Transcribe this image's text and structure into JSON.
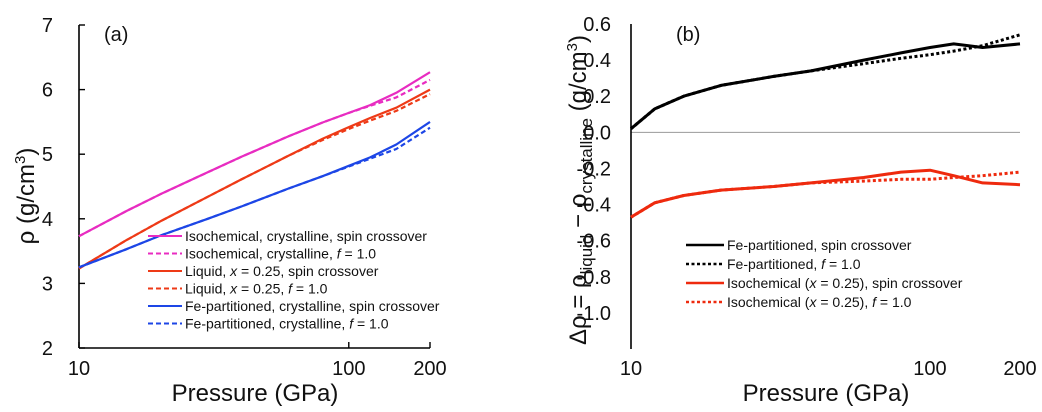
{
  "chart_data": [
    {
      "type": "line",
      "panel_label": "(a)",
      "xlabel": "Pressure (GPa)",
      "ylabel": "ρ (g/cm³)",
      "x_scale": "log",
      "xlim": [
        10,
        200
      ],
      "ylim": [
        2,
        7
      ],
      "x_ticks": [
        "10",
        "100",
        "200"
      ],
      "y_ticks": [
        "2",
        "3",
        "4",
        "5",
        "6",
        "7"
      ],
      "legend_position": "lower-right",
      "series": [
        {
          "label": [
            "Isochemical, crystalline, spin crossover"
          ],
          "color": "#e82cc1",
          "dash": "solid",
          "x": [
            10,
            15,
            20,
            30,
            40,
            60,
            80,
            100,
            120,
            150,
            200
          ],
          "y": [
            3.73,
            4.12,
            4.38,
            4.72,
            4.96,
            5.28,
            5.49,
            5.64,
            5.76,
            5.95,
            6.27
          ]
        },
        {
          "label": [
            "Isochemical, crystalline, ",
            {
              "t": "f",
              "i": true
            },
            " = 1.0"
          ],
          "color": "#e82cc1",
          "dash": "dashed",
          "x": [
            10,
            15,
            20,
            30,
            40,
            60,
            80,
            100,
            120,
            150,
            200
          ],
          "y": [
            3.73,
            4.12,
            4.38,
            4.72,
            4.96,
            5.28,
            5.49,
            5.64,
            5.75,
            5.88,
            6.15
          ]
        },
        {
          "label": [
            "Liquid, ",
            {
              "t": "x",
              "i": true
            },
            " = 0.25, spin crossover"
          ],
          "color": "#ee3a17",
          "dash": "solid",
          "x": [
            10,
            15,
            20,
            30,
            40,
            60,
            80,
            100,
            120,
            150,
            200
          ],
          "y": [
            3.23,
            3.67,
            3.96,
            4.34,
            4.61,
            4.98,
            5.24,
            5.42,
            5.56,
            5.72,
            6.0
          ]
        },
        {
          "label": [
            "Liquid, ",
            {
              "t": "x",
              "i": true
            },
            " = 0.25, ",
            {
              "t": "f",
              "i": true
            },
            " = 1.0"
          ],
          "color": "#ee3a17",
          "dash": "dashed",
          "x": [
            10,
            15,
            20,
            30,
            40,
            60,
            80,
            100,
            120,
            150,
            200
          ],
          "y": [
            3.23,
            3.67,
            3.96,
            4.34,
            4.61,
            4.98,
            5.22,
            5.39,
            5.52,
            5.67,
            5.93
          ]
        },
        {
          "label": [
            "Fe-partitioned, crystalline, spin crossover"
          ],
          "color": "#1d46e6",
          "dash": "solid",
          "x": [
            10,
            15,
            20,
            30,
            40,
            60,
            80,
            100,
            120,
            150,
            200
          ],
          "y": [
            3.25,
            3.53,
            3.74,
            4.0,
            4.19,
            4.47,
            4.66,
            4.82,
            4.95,
            5.15,
            5.5
          ]
        },
        {
          "label": [
            "Fe-partitioned, crystalline, ",
            {
              "t": "f",
              "i": true
            },
            " = 1.0"
          ],
          "color": "#1d46e6",
          "dash": "dashed",
          "x": [
            10,
            15,
            20,
            30,
            40,
            60,
            80,
            100,
            120,
            150,
            200
          ],
          "y": [
            3.25,
            3.53,
            3.74,
            4.0,
            4.19,
            4.47,
            4.66,
            4.81,
            4.93,
            5.08,
            5.41
          ]
        }
      ]
    },
    {
      "type": "line",
      "panel_label": "(b)",
      "xlabel": "Pressure (GPa)",
      "ylabel": "Δρ = ρliquid − ρcrystalline (g/cm³)",
      "x_scale": "log",
      "xlim": [
        10,
        200
      ],
      "ylim": [
        -1.2,
        0.6
      ],
      "x_ticks": [
        "10",
        "100",
        "200"
      ],
      "y_ticks": [
        "0.6",
        "0.4",
        "0.2",
        "0.0",
        "-0.2",
        "-0.4",
        "-0.6",
        "-0.8",
        "-1.0"
      ],
      "zero_line": true,
      "legend_position": "lower-left",
      "series": [
        {
          "label": [
            "Fe-partitioned, spin crossover"
          ],
          "color": "#000000",
          "dash": "solid",
          "x": [
            10,
            12,
            15,
            20,
            30,
            40,
            60,
            80,
            100,
            120,
            150,
            200
          ],
          "y": [
            0.02,
            0.13,
            0.2,
            0.26,
            0.31,
            0.34,
            0.4,
            0.44,
            0.47,
            0.49,
            0.47,
            0.49
          ]
        },
        {
          "label": [
            "Fe-partitioned, ",
            {
              "t": "f",
              "i": true
            },
            " = 1.0"
          ],
          "color": "#000000",
          "dash": "dotted",
          "x": [
            10,
            12,
            15,
            20,
            30,
            40,
            60,
            80,
            100,
            120,
            150,
            200
          ],
          "y": [
            0.02,
            0.13,
            0.2,
            0.26,
            0.31,
            0.34,
            0.38,
            0.41,
            0.43,
            0.45,
            0.48,
            0.54
          ]
        },
        {
          "label": [
            "Isochemical (",
            {
              "t": "x",
              "i": true
            },
            " = 0.25), spin crossover"
          ],
          "color": "#ee2a0e",
          "dash": "solid",
          "x": [
            10,
            12,
            15,
            20,
            30,
            40,
            60,
            80,
            100,
            120,
            150,
            200
          ],
          "y": [
            -0.47,
            -0.39,
            -0.35,
            -0.32,
            -0.3,
            -0.28,
            -0.25,
            -0.22,
            -0.21,
            -0.24,
            -0.28,
            -0.29
          ]
        },
        {
          "label": [
            "Isochemical (",
            {
              "t": "x",
              "i": true
            },
            " = 0.25), ",
            {
              "t": "f",
              "i": true
            },
            " = 1.0"
          ],
          "color": "#ee2a0e",
          "dash": "dotted",
          "x": [
            10,
            12,
            15,
            20,
            30,
            40,
            60,
            80,
            100,
            120,
            150,
            200
          ],
          "y": [
            -0.47,
            -0.39,
            -0.35,
            -0.32,
            -0.3,
            -0.28,
            -0.27,
            -0.26,
            -0.26,
            -0.25,
            -0.24,
            -0.22
          ]
        }
      ]
    }
  ]
}
